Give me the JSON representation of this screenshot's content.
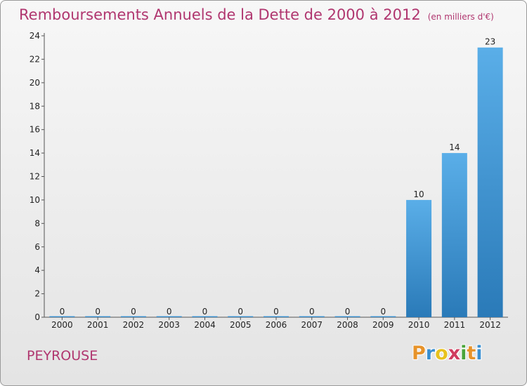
{
  "header": {
    "title": "Remboursements Annuels de la Dette de 2000 à 2012",
    "unit": "(en milliers d'€)"
  },
  "footer": {
    "commune": "PEYROUSE",
    "logo_letters": [
      "P",
      "r",
      "o",
      "x",
      "i",
      "t",
      "i"
    ],
    "logo_colors": [
      "#e7932a",
      "#3a8fd0",
      "#e8c21d",
      "#d03b5e",
      "#4aa43a",
      "#e7932a",
      "#3a8fd0"
    ]
  },
  "chart_data": {
    "type": "bar",
    "categories": [
      "2000",
      "2001",
      "2002",
      "2003",
      "2004",
      "2005",
      "2006",
      "2007",
      "2008",
      "2009",
      "2010",
      "2011",
      "2012"
    ],
    "values": [
      0,
      0,
      0,
      0,
      0,
      0,
      0,
      0,
      0,
      0,
      10,
      14,
      23
    ],
    "data_labels": [
      "0",
      "0",
      "0",
      "0",
      "0",
      "0",
      "0",
      "0",
      "0",
      "0",
      "10",
      "14",
      "23"
    ],
    "y_ticks": [
      0,
      2,
      4,
      6,
      8,
      10,
      12,
      14,
      16,
      18,
      20,
      22,
      24
    ],
    "ylim": [
      0,
      24
    ],
    "grid": false,
    "bar_color_top": "#5aaee8",
    "bar_color_bottom": "#2a7ab8"
  }
}
